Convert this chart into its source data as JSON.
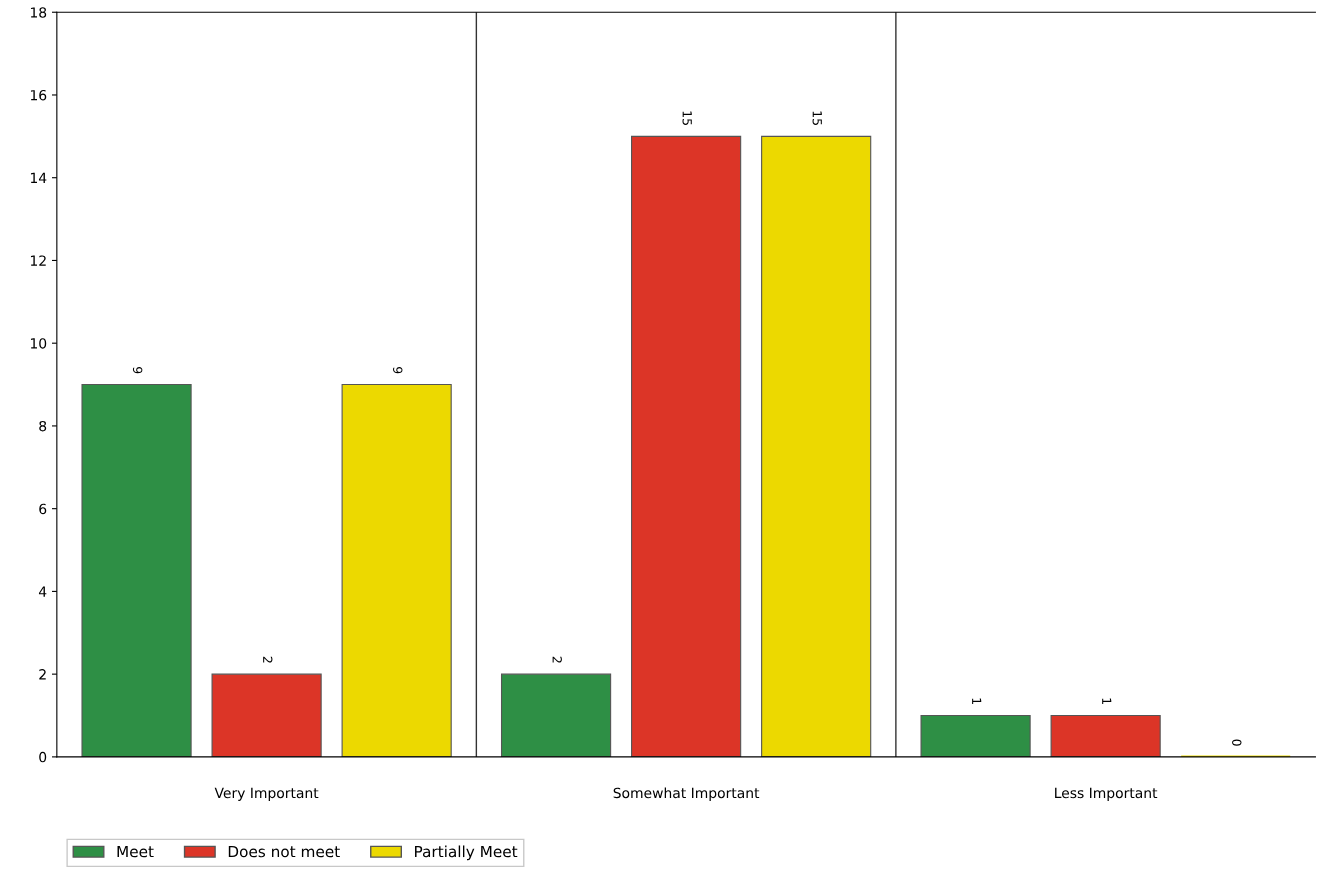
{
  "chart_data": {
    "type": "bar",
    "categories": [
      "Very Important",
      "Somewhat Important",
      "Less Important"
    ],
    "series": [
      {
        "name": "Meet",
        "color": "#2e8f45",
        "values": [
          9,
          2,
          1
        ]
      },
      {
        "name": "Does not meet",
        "color": "#dc3527",
        "values": [
          2,
          15,
          1
        ]
      },
      {
        "name": "Partially Meet",
        "color": "#ecd900",
        "values": [
          9,
          15,
          0
        ]
      }
    ],
    "ylim": [
      0,
      18
    ],
    "yticks": [
      0,
      2,
      4,
      6,
      8,
      10,
      12,
      14,
      16,
      18
    ],
    "grid": "x",
    "legend": "bottom left",
    "data_labels": true
  }
}
